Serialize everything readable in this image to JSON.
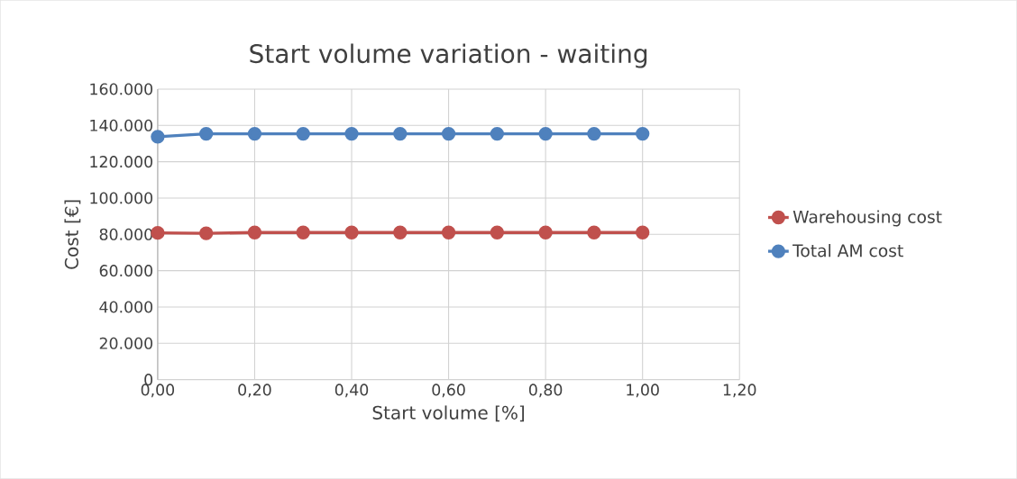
{
  "chart_data": {
    "type": "line",
    "title": "Start volume variation - waiting",
    "xlabel": "Start volume [%]",
    "ylabel": "Cost [€]",
    "x": [
      0,
      0.1,
      0.2,
      0.3,
      0.4,
      0.5,
      0.6,
      0.7,
      0.8,
      0.9,
      1.0
    ],
    "series": [
      {
        "name": "Warehousing cost",
        "color": "#c0504d",
        "values": [
          80800,
          80600,
          81000,
          81000,
          81000,
          81000,
          81000,
          81000,
          81000,
          81000,
          81000
        ]
      },
      {
        "name": "Total AM cost",
        "color": "#4f81bd",
        "values": [
          133800,
          135400,
          135400,
          135400,
          135400,
          135400,
          135400,
          135400,
          135400,
          135400,
          135400
        ]
      }
    ],
    "xlim": [
      0,
      1.2
    ],
    "xticks": [
      {
        "value": 0,
        "label": "0,00"
      },
      {
        "value": 0.2,
        "label": "0,20"
      },
      {
        "value": 0.4,
        "label": "0,40"
      },
      {
        "value": 0.6,
        "label": "0,60"
      },
      {
        "value": 0.8,
        "label": "0,80"
      },
      {
        "value": 1.0,
        "label": "1,00"
      },
      {
        "value": 1.2,
        "label": "1,20"
      }
    ],
    "ylim": [
      0,
      160000
    ],
    "yticks": [
      0,
      {
        "value": 20000,
        "label": "20.000"
      },
      {
        "value": 40000,
        "label": "40.000"
      },
      {
        "value": 60000,
        "label": "60.000"
      },
      {
        "value": 80000,
        "label": "80.000"
      },
      {
        "value": 100000,
        "label": "100.000"
      },
      {
        "value": 120000,
        "label": "120.000"
      },
      {
        "value": 140000,
        "label": "140.000"
      },
      {
        "value": 160000,
        "label": "160.000"
      }
    ],
    "grid": true,
    "legend": "right",
    "marker": "circle",
    "line_style": "solid"
  }
}
